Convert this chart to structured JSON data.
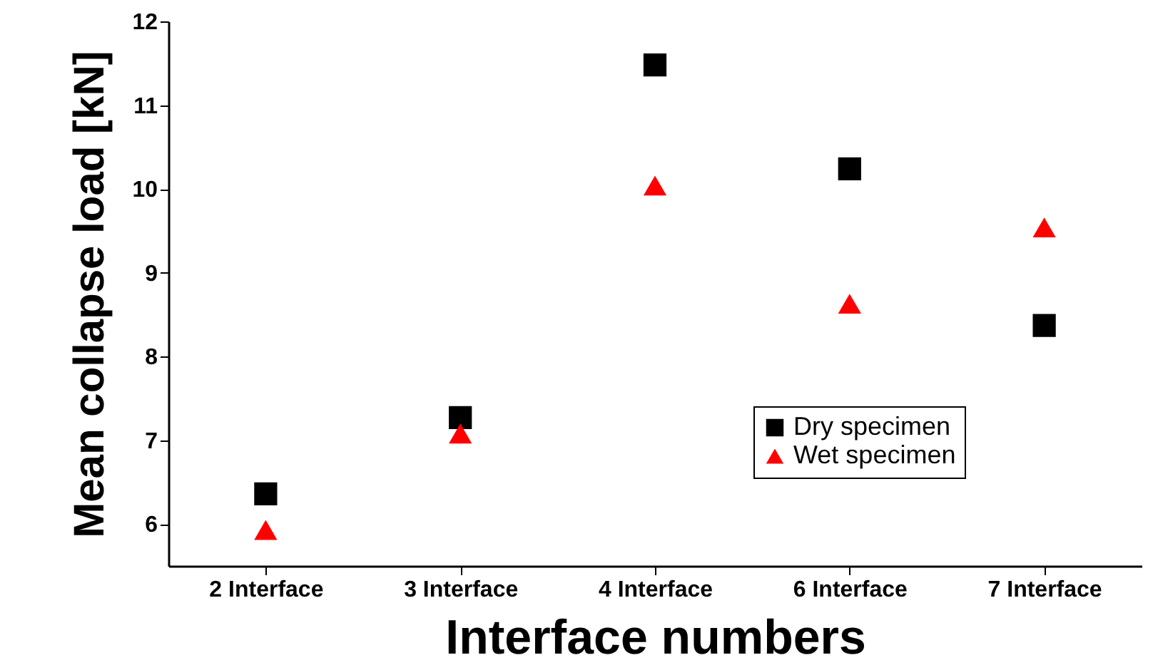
{
  "chart_data": {
    "type": "scatter",
    "xlabel": "Interface numbers",
    "ylabel": "Mean collapse load [kN]",
    "categories": [
      "2 Interface",
      "3 Interface",
      "4 Interface",
      "6 Interface",
      "7 Interface"
    ],
    "series": [
      {
        "name": "Dry specimen",
        "color": "#000000",
        "marker": "square",
        "values": [
          6.36,
          7.27,
          11.48,
          10.24,
          8.37
        ]
      },
      {
        "name": "Wet specimen",
        "color": "#ff0000",
        "marker": "triangle",
        "values": [
          5.93,
          7.08,
          10.04,
          8.63,
          9.54
        ]
      }
    ],
    "ylim": [
      5.5,
      12
    ],
    "yticks": [
      6,
      7,
      8,
      9,
      10,
      11,
      12
    ],
    "grid": false,
    "legend": "bottom right"
  }
}
